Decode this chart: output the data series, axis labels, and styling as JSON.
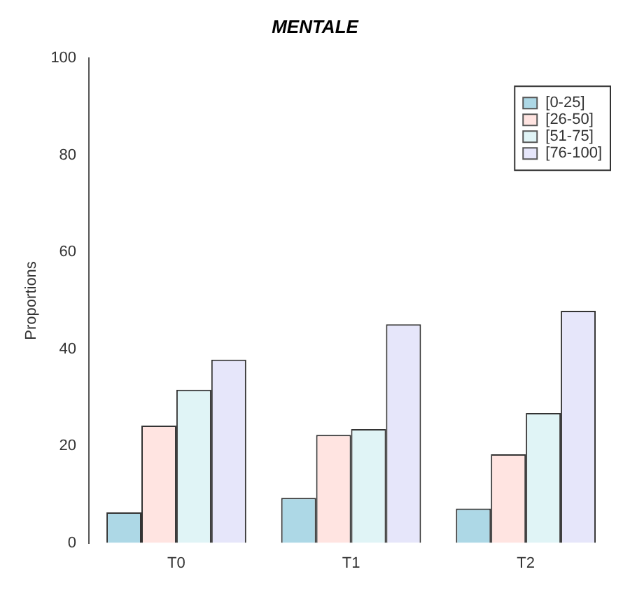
{
  "chart_data": {
    "type": "bar",
    "title": "MENTALE",
    "ylabel": "Proportions",
    "categories": [
      "T0",
      "T1",
      "T2"
    ],
    "series": [
      {
        "name": "[0-25]",
        "color": "#add8e6",
        "values": [
          6.3,
          9.3,
          7.1
        ]
      },
      {
        "name": "[26-50]",
        "color": "#ffe4e1",
        "values": [
          24.2,
          22.3,
          18.3
        ]
      },
      {
        "name": "[51-75]",
        "color": "#e0f4f6",
        "values": [
          31.6,
          23.5,
          26.8
        ]
      },
      {
        "name": "[76-100]",
        "color": "#e6e6fa",
        "values": [
          37.8,
          45.1,
          47.9
        ]
      }
    ],
    "ylim": [
      0,
      100
    ],
    "yticks": [
      0,
      20,
      40,
      60,
      80,
      100
    ],
    "grid": false,
    "legend": "top right"
  }
}
